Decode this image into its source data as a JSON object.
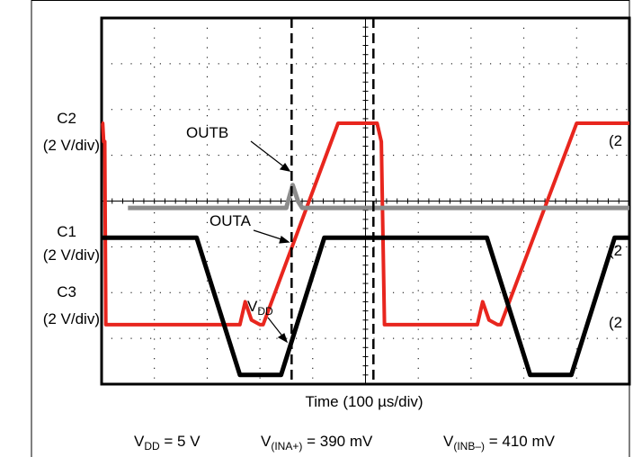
{
  "chart_data": {
    "type": "line",
    "xlabel": "Time (100 µs/div)",
    "x_units": "div",
    "y_units": "div",
    "xlim": [
      0,
      10
    ],
    "ylim": [
      0,
      8
    ],
    "grid": true,
    "channel_labels": [
      {
        "name": "C2",
        "scale": "(2 V/div)"
      },
      {
        "name": "C1",
        "scale": "(2 V/div)"
      },
      {
        "name": "C3",
        "scale": "(2 V/div)"
      }
    ],
    "cut_off_right_labels": [
      "(2",
      "(2",
      "(2"
    ],
    "series": [
      {
        "name": "OUTB",
        "color": "#e8261e",
        "width": 4,
        "x": [
          0,
          0.02,
          0.04,
          0.06,
          0.08,
          2.62,
          2.72,
          2.84,
          3.0,
          3.06,
          4.48,
          4.6,
          5.0,
          5.22,
          5.3,
          5.36,
          7.12,
          7.22,
          7.34,
          7.5,
          7.56,
          9.0,
          9.1,
          10
        ],
        "y": [
          5.7,
          5.7,
          5.3,
          5.3,
          1.3,
          1.3,
          1.8,
          1.4,
          1.3,
          1.3,
          5.7,
          5.7,
          5.7,
          5.7,
          5.3,
          1.3,
          1.3,
          1.8,
          1.4,
          1.3,
          1.3,
          5.7,
          5.7,
          5.7
        ]
      },
      {
        "name": "OUTA",
        "color": "#8c8c8c",
        "width": 5,
        "x": [
          0.5,
          3.5,
          3.62,
          3.72,
          3.8,
          10
        ],
        "y": [
          3.85,
          3.85,
          4.35,
          4.0,
          3.85,
          3.85
        ]
      },
      {
        "name": "VDD",
        "color": "#000000",
        "width": 5,
        "x": [
          0,
          1.8,
          2.62,
          2.76,
          3.25,
          3.4,
          4.22,
          5.0,
          5.5,
          7.3,
          8.12,
          8.26,
          8.75,
          8.9,
          9.72,
          10
        ],
        "y": [
          3.2,
          3.2,
          0.2,
          0.2,
          0.2,
          0.2,
          3.2,
          3.2,
          3.2,
          3.2,
          0.2,
          0.2,
          0.2,
          0.2,
          3.2,
          3.2
        ]
      }
    ],
    "markers": [
      {
        "type": "dashed-vline",
        "x": 3.6
      },
      {
        "type": "dashed-vline",
        "x": 5.15
      }
    ],
    "annotations": [
      {
        "text": "OUTB",
        "sub": "",
        "target_series": "OUTB"
      },
      {
        "text": "OUTA",
        "sub": "",
        "target_series": "OUTA"
      },
      {
        "text": "V",
        "sub": "DD",
        "target_series": "VDD"
      }
    ],
    "caption": [
      {
        "main": "V",
        "sub": "DD",
        "rest": " = 5 V"
      },
      {
        "main": "V",
        "sub": "(INA+)",
        "rest": " = 390 mV"
      },
      {
        "main": "V",
        "sub": "(INB–)",
        "rest": " = 410 mV"
      }
    ]
  }
}
